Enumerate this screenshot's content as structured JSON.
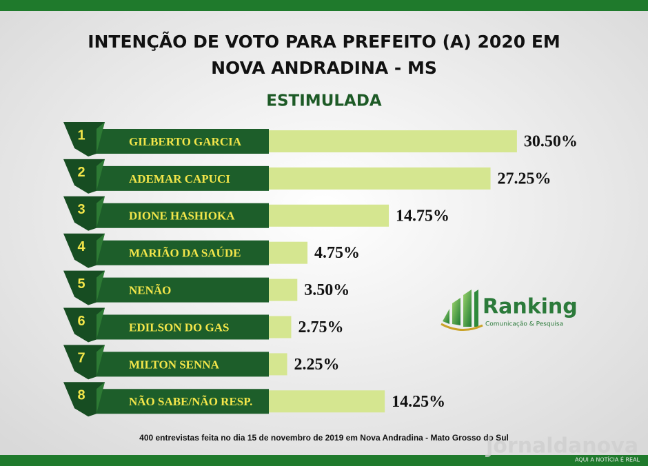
{
  "chart_data": {
    "type": "bar",
    "title": [
      "INTENÇÃO DE VOTO PARA PREFEITO (A) 2020 EM",
      "NOVA ANDRADINA - MS"
    ],
    "subtitle": "ESTIMULADA",
    "ranks": [
      1,
      2,
      3,
      4,
      5,
      6,
      7,
      8
    ],
    "categories": [
      "GILBERTO GARCIA",
      "ADEMAR CAPUCI",
      "DIONE HASHIOKA",
      "MARIÃO DA SAÚDE",
      "NENÃO",
      "EDILSON DO GAS",
      "MILTON SENNA",
      "NÃO SABE/NÃO RESP."
    ],
    "values": [
      30.5,
      27.25,
      14.75,
      4.75,
      3.5,
      2.75,
      2.25,
      14.25
    ],
    "value_labels": [
      "30.50%",
      "27.25%",
      "14.75%",
      "4.75%",
      "3.50%",
      "2.75%",
      "2.25%",
      "14.25%"
    ],
    "color": "#d5e690",
    "footnote": "400 entrevistas feita no dia 15 de novembro de 2019 em Nova Andradina - Mato Grosso do Sul",
    "logo": {
      "name": "Ranking",
      "tagline": "Comunicação & Pesquisa"
    },
    "watermark": {
      "name": "jornaldanova",
      "tagline": "AQUI A NOTÍCIA É REAL"
    }
  }
}
